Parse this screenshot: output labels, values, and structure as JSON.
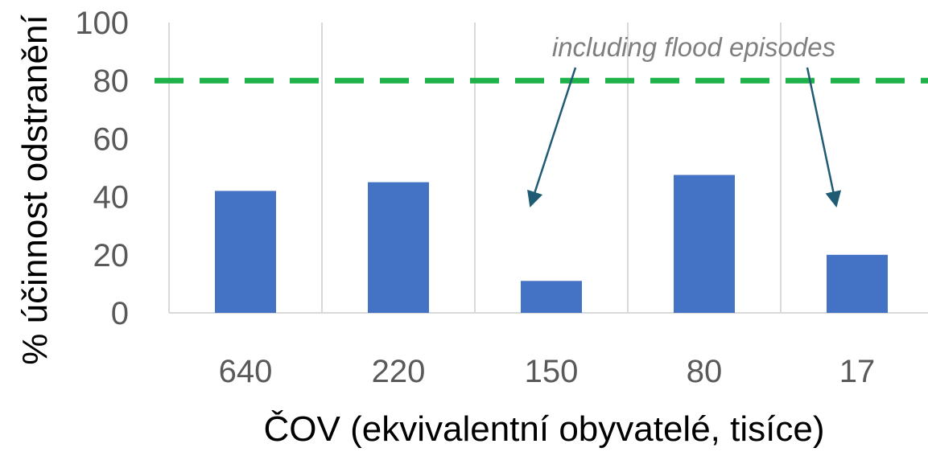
{
  "chart_data": {
    "type": "bar",
    "categories": [
      "640",
      "220",
      "150",
      "80",
      "17"
    ],
    "values": [
      42,
      45,
      11,
      47.5,
      20
    ],
    "ylim": [
      0,
      100
    ],
    "yticks": [
      "0",
      "20",
      "40",
      "60",
      "80",
      "100"
    ],
    "ylabel": "% účinnost odstranění",
    "xlabel": "ČOV (ekvivalentní obyvatelé, tisíce)",
    "grid": "vertical separators between categories",
    "reference_line": {
      "value": 80,
      "style": "dashed",
      "color": "#1fb14a"
    },
    "annotation": {
      "text": "including flood episodes",
      "points_to": [
        "150",
        "17"
      ]
    },
    "bar_color": "#4472c4",
    "gridline_color": "#d9d9d9",
    "arrow_color": "#1f5c74"
  }
}
